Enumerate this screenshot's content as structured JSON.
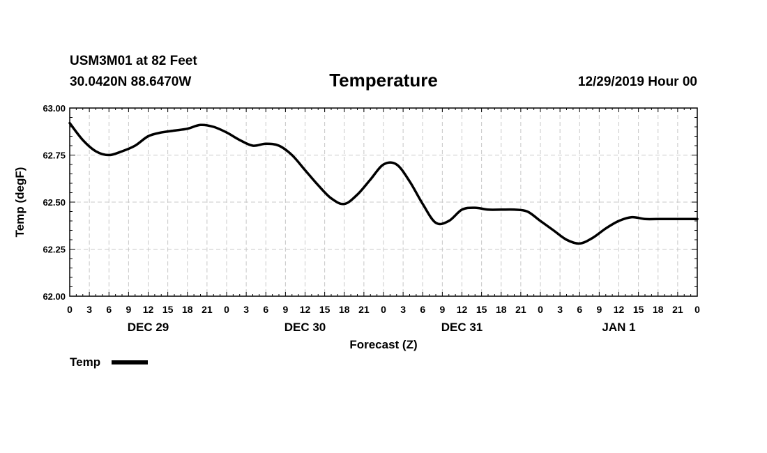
{
  "header": {
    "station": "USM3M01 at 82 Feet",
    "coords": "30.0420N 88.6470W",
    "title": "Temperature",
    "datetime": "12/29/2019 Hour 00"
  },
  "chart_data": {
    "type": "line",
    "title": "Temperature",
    "xlabel": "Forecast (Z)",
    "ylabel": "Temp (degF)",
    "ylim": [
      62.0,
      63.0
    ],
    "yticks": [
      62.0,
      62.25,
      62.5,
      62.75,
      63.0
    ],
    "ytick_labels": [
      "62.00",
      "62.25",
      "62.50",
      "62.75",
      "63.00"
    ],
    "xlim": [
      0,
      96
    ],
    "xticks": [
      0,
      3,
      6,
      9,
      12,
      15,
      18,
      21,
      24,
      27,
      30,
      33,
      36,
      39,
      42,
      45,
      48,
      51,
      54,
      57,
      60,
      63,
      66,
      69,
      72,
      75,
      78,
      81,
      84,
      87,
      90,
      93,
      96
    ],
    "xtick_labels": [
      "0",
      "3",
      "6",
      "9",
      "12",
      "15",
      "18",
      "21",
      "0",
      "3",
      "6",
      "9",
      "12",
      "15",
      "18",
      "21",
      "0",
      "3",
      "6",
      "9",
      "12",
      "15",
      "18",
      "21",
      "0",
      "3",
      "6",
      "9",
      "12",
      "15",
      "18",
      "21",
      "0"
    ],
    "day_labels": [
      {
        "label": "DEC 29",
        "x": 12
      },
      {
        "label": "DEC 30",
        "x": 36
      },
      {
        "label": "DEC 31",
        "x": 60
      },
      {
        "label": "JAN 1",
        "x": 84
      }
    ],
    "grid": true,
    "legend_position": "bottom-left",
    "series": [
      {
        "name": "Temp",
        "x": [
          0,
          2,
          4,
          6,
          8,
          10,
          12,
          14,
          16,
          18,
          20,
          22,
          24,
          26,
          28,
          30,
          32,
          34,
          36,
          38,
          40,
          42,
          44,
          46,
          48,
          50,
          52,
          54,
          56,
          58,
          60,
          62,
          64,
          66,
          68,
          70,
          72,
          74,
          76,
          78,
          80,
          82,
          84,
          86,
          88,
          90,
          92,
          94,
          96
        ],
        "values": [
          62.92,
          62.83,
          62.77,
          62.75,
          62.77,
          62.8,
          62.85,
          62.87,
          62.88,
          62.89,
          62.91,
          62.9,
          62.87,
          62.83,
          62.8,
          62.81,
          62.8,
          62.75,
          62.67,
          62.59,
          62.52,
          62.49,
          62.54,
          62.62,
          62.7,
          62.7,
          62.61,
          62.49,
          62.39,
          62.4,
          62.46,
          62.47,
          62.46,
          62.46,
          62.46,
          62.45,
          62.4,
          62.35,
          62.3,
          62.28,
          62.31,
          62.36,
          62.4,
          62.42,
          62.41,
          62.41,
          62.41,
          62.41,
          62.41
        ]
      }
    ]
  }
}
